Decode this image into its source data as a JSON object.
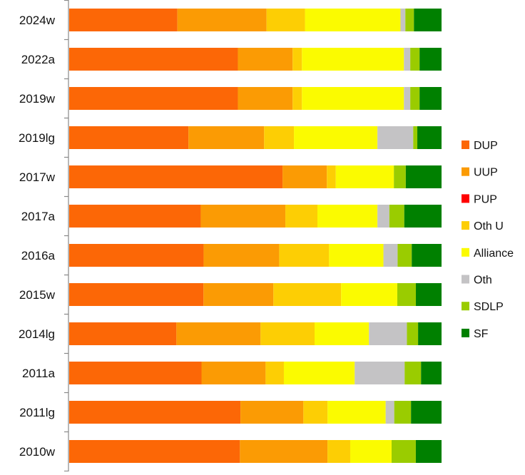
{
  "chart_data": {
    "type": "bar",
    "orientation": "horizontal",
    "stacked": "100%",
    "title": "",
    "xlabel": "",
    "ylabel": "",
    "xlim": [
      0,
      100
    ],
    "grid": false,
    "legend_position": "right",
    "categories": [
      "2024w",
      "2022a",
      "2019w",
      "2019lg",
      "2017w",
      "2017a",
      "2016a",
      "2015w",
      "2014lg",
      "2011a",
      "2011lg",
      "2010w"
    ],
    "series": [
      {
        "name": "DUP",
        "color": "#FC6706",
        "values": [
          29.0,
          45.3,
          45.3,
          32.0,
          57.3,
          35.3,
          36.1,
          36.1,
          28.8,
          35.5,
          46.0,
          45.8
        ]
      },
      {
        "name": "UUP",
        "color": "#FB9B04",
        "values": [
          23.9,
          14.7,
          14.7,
          20.3,
          11.9,
          22.7,
          20.3,
          18.8,
          22.6,
          17.2,
          16.9,
          23.5
        ]
      },
      {
        "name": "PUP",
        "color": "#FF0000",
        "values": [
          0,
          0,
          0,
          0,
          0,
          0,
          0,
          0,
          0,
          0,
          0,
          0
        ]
      },
      {
        "name": "Oth U",
        "color": "#FDCE04",
        "values": [
          10.3,
          2.5,
          2.5,
          8.0,
          2.4,
          8.6,
          13.4,
          18.2,
          14.5,
          4.9,
          6.5,
          6.1
        ]
      },
      {
        "name": "Alliance",
        "color": "#FBFB00",
        "values": [
          25.6,
          27.4,
          27.4,
          22.4,
          15.6,
          16.1,
          14.6,
          15.1,
          14.6,
          19.0,
          15.6,
          11.1
        ]
      },
      {
        "name": "Oth",
        "color": "#C4C3C5",
        "values": [
          1.3,
          1.7,
          1.7,
          9.6,
          0,
          3.2,
          3.8,
          0,
          10.2,
          13.4,
          2.3,
          0
        ]
      },
      {
        "name": "SDLP",
        "color": "#9ACC00",
        "values": [
          2.3,
          2.5,
          2.5,
          1.1,
          3.2,
          4.0,
          3.8,
          5.0,
          3.0,
          4.4,
          4.5,
          6.5
        ]
      },
      {
        "name": "SF",
        "color": "#008000",
        "values": [
          7.4,
          5.9,
          5.9,
          6.5,
          9.6,
          10.0,
          8.0,
          6.9,
          6.3,
          5.5,
          8.2,
          6.9
        ]
      }
    ]
  }
}
